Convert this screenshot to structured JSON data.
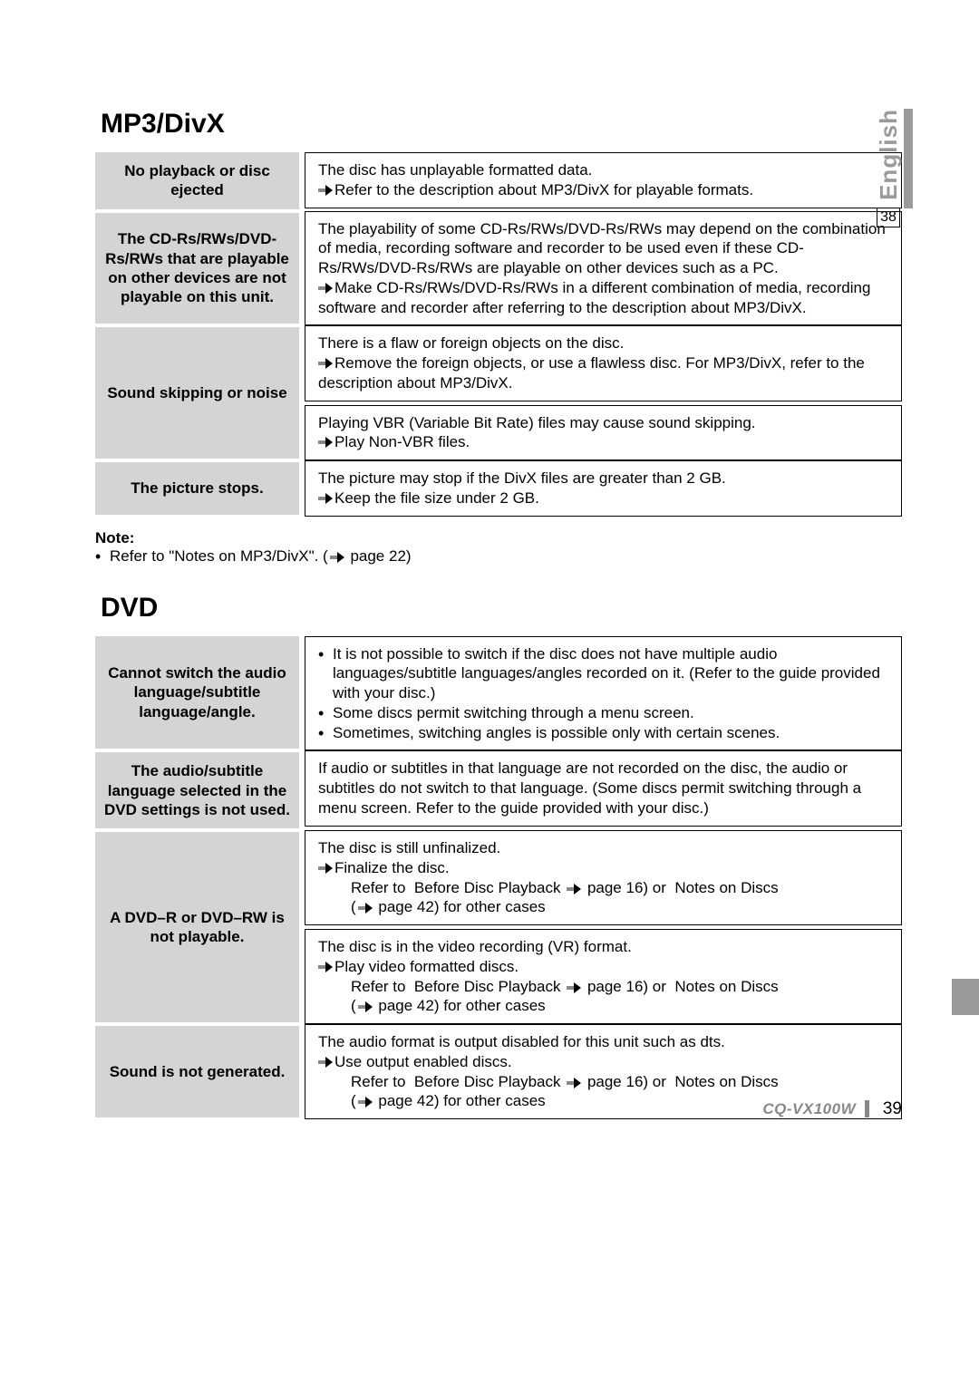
{
  "side": {
    "language": "English",
    "page_ref": "38"
  },
  "colors": {
    "label_bg": "#d4d4d4",
    "border": "#000000",
    "side_grey": "#9a9a9a",
    "footer_grey": "#888888"
  },
  "mp3": {
    "title": "MP3/DivX",
    "rows": [
      {
        "label": "No playback or disc ejected",
        "cells": [
          {
            "lines": [
              {
                "type": "plain",
                "text": "The disc has unplayable formatted data."
              },
              {
                "type": "arrow",
                "text": "Refer to the description about MP3/DivX for playable formats."
              }
            ]
          }
        ]
      },
      {
        "label": "The CD-Rs/RWs/DVD-Rs/RWs that are playable on other devices are not playable on this unit.",
        "cells": [
          {
            "lines": [
              {
                "type": "plain",
                "text": "The playability of some CD-Rs/RWs/DVD-Rs/RWs may depend on the combination of media, recording software and recorder to be used even if these CD-Rs/RWs/DVD-Rs/RWs are playable on other devices such as a PC."
              },
              {
                "type": "arrow",
                "text": "Make CD-Rs/RWs/DVD-Rs/RWs in a different combination of media, recording software and recorder after referring to the description about MP3/DivX."
              }
            ]
          }
        ]
      },
      {
        "label": "Sound skipping or noise",
        "cells": [
          {
            "lines": [
              {
                "type": "plain",
                "text": "There is a flaw or foreign objects on the disc."
              },
              {
                "type": "arrow",
                "text": "Remove the foreign objects, or use a flawless disc. For MP3/DivX, refer to the description about MP3/DivX."
              }
            ]
          },
          {
            "lines": [
              {
                "type": "plain",
                "text": "Playing VBR (Variable Bit Rate) files may cause sound skipping."
              },
              {
                "type": "arrow",
                "text": "Play Non-VBR files."
              }
            ]
          }
        ]
      },
      {
        "label": "The picture stops.",
        "cells": [
          {
            "lines": [
              {
                "type": "plain",
                "text": "The picture may stop if the DivX files are greater than 2 GB."
              },
              {
                "type": "arrow",
                "text": "Keep the file size under 2 GB."
              }
            ]
          }
        ]
      }
    ],
    "note_title": "Note:",
    "note_prefix": "Refer to \"Notes on MP3/DivX\". (",
    "note_suffix": " page 22)"
  },
  "dvd": {
    "title": "DVD",
    "rows": [
      {
        "label": "Cannot switch the audio language/subtitle language/angle.",
        "cells": [
          {
            "lines": [
              {
                "type": "bullet",
                "text": "It is not possible to switch if the disc does not have multiple audio languages/subtitle languages/angles recorded on it. (Refer to the guide provided with your disc.)"
              },
              {
                "type": "bullet",
                "text": "Some discs permit switching through a menu screen."
              },
              {
                "type": "bullet",
                "text": "Sometimes, switching angles is possible only with certain scenes."
              }
            ]
          }
        ]
      },
      {
        "label": "The audio/subtitle language selected in the DVD settings is not used.",
        "cells": [
          {
            "lines": [
              {
                "type": "plain",
                "text": "If audio or subtitles in that language are not recorded on the disc, the audio or subtitles do not switch to that language. (Some discs permit switching through a menu screen. Refer to the guide provided with your disc.)"
              }
            ]
          }
        ]
      },
      {
        "label": "A DVD–R or DVD–RW is not playable.",
        "cells": [
          {
            "lines": [
              {
                "type": "plain",
                "text": "The disc is still unfinalized."
              },
              {
                "type": "arrow",
                "text": "Finalize the disc."
              },
              {
                "type": "ref",
                "pre": "Refer to  Before Disc Playback ",
                "mid": " page 16) or  Notes on Discs",
                "pre2": "(",
                "suf": " page 42) for other cases"
              }
            ]
          },
          {
            "lines": [
              {
                "type": "plain",
                "text": "The disc is in the video recording (VR) format."
              },
              {
                "type": "arrow",
                "text": "Play video formatted discs."
              },
              {
                "type": "ref",
                "pre": "Refer to  Before Disc Playback ",
                "mid": " page 16) or  Notes on Discs",
                "pre2": "(",
                "suf": " page 42) for other cases"
              }
            ]
          }
        ]
      },
      {
        "label": "Sound is not generated.",
        "cells": [
          {
            "lines": [
              {
                "type": "plain",
                "text": "The audio format is output disabled for this unit such as dts."
              },
              {
                "type": "arrow",
                "text": "Use output enabled discs."
              },
              {
                "type": "ref",
                "pre": "Refer to  Before Disc Playback ",
                "mid": " page 16) or  Notes on Discs",
                "pre2": "(",
                "suf": " page 42) for other cases"
              }
            ]
          }
        ]
      }
    ]
  },
  "footer": {
    "model": "CQ-VX100W",
    "page": "39"
  }
}
